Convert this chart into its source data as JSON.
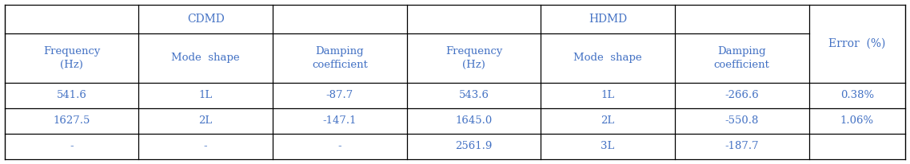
{
  "cdmd_header": "CDMD",
  "hdmd_header": "HDMD",
  "col_headers": [
    "Frequency\n(Hz)",
    "Mode shape",
    "Damping\ncoefficient",
    "Frequency\n(Hz)",
    "Mode shape",
    "Damping\ncoefficient",
    "Error  (%)"
  ],
  "rows": [
    [
      "541.6",
      "1L",
      "-87.7",
      "543.6",
      "1L",
      "-266.6",
      "0.38%"
    ],
    [
      "1627.5",
      "2L",
      "-147.1",
      "1645.0",
      "2L",
      "-550.8",
      "1.06%"
    ],
    [
      "-",
      "-",
      "-",
      "2561.9",
      "3L",
      "-187.7",
      ""
    ]
  ],
  "background_color": "#ffffff",
  "line_color": "#000000",
  "text_color": "#4472c4",
  "font_size": 9.5,
  "header_font_size": 10
}
